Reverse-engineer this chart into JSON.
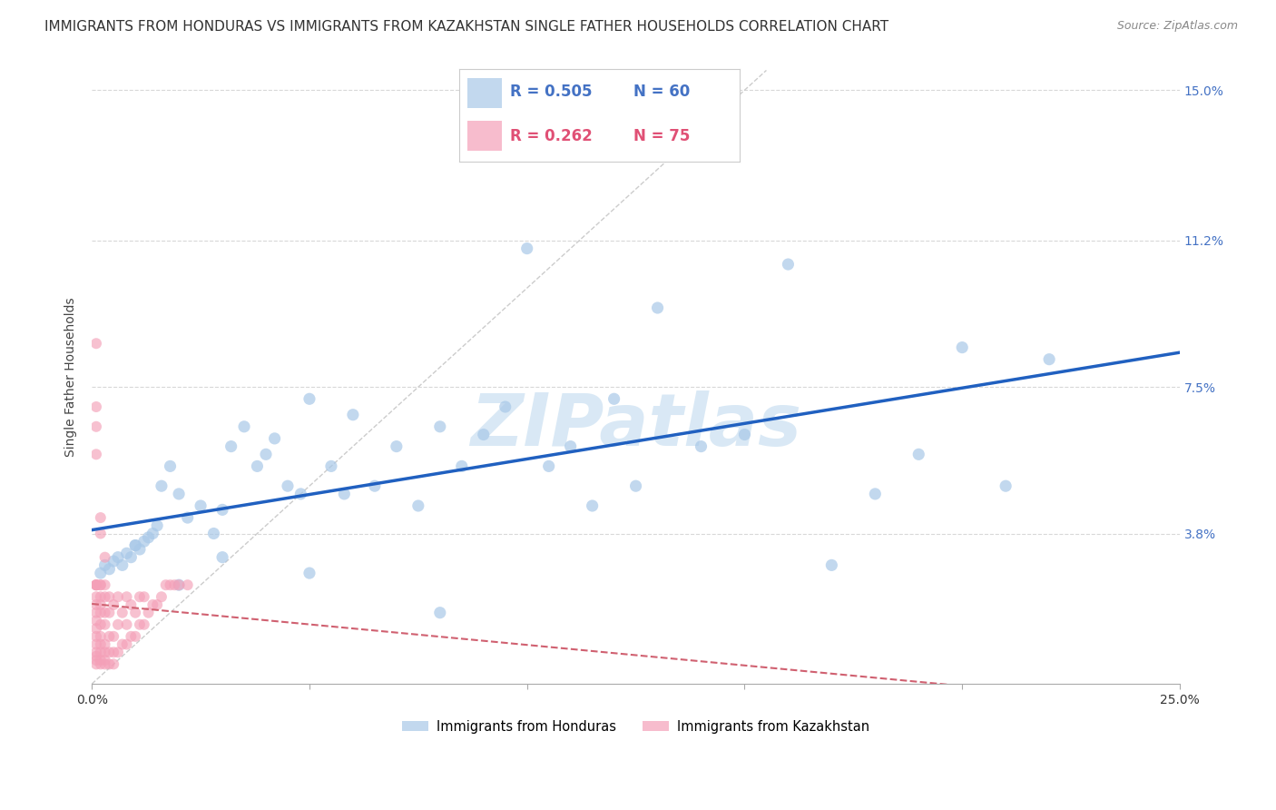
{
  "title": "IMMIGRANTS FROM HONDURAS VS IMMIGRANTS FROM KAZAKHSTAN SINGLE FATHER HOUSEHOLDS CORRELATION CHART",
  "source": "Source: ZipAtlas.com",
  "ylabel": "Single Father Households",
  "blue_label": "Immigrants from Honduras",
  "pink_label": "Immigrants from Kazakhstan",
  "blue_color": "#a8c8e8",
  "pink_color": "#f4a0b8",
  "blue_line_color": "#2060c0",
  "pink_line_color": "#d06070",
  "diagonal_color": "#cccccc",
  "xlim": [
    0.0,
    0.25
  ],
  "ylim": [
    0.0,
    0.155
  ],
  "ytick_values": [
    0.038,
    0.075,
    0.112,
    0.15
  ],
  "ytick_labels": [
    "3.8%",
    "7.5%",
    "11.2%",
    "15.0%"
  ],
  "xtick_values": [
    0.0,
    0.05,
    0.1,
    0.15,
    0.2,
    0.25
  ],
  "xtick_labels": [
    "0.0%",
    "",
    "",
    "",
    "",
    "25.0%"
  ],
  "legend_blue_R": "0.505",
  "legend_blue_N": "60",
  "legend_pink_R": "0.262",
  "legend_pink_N": "75",
  "watermark": "ZIPatlas",
  "background_color": "#ffffff",
  "grid_color": "#d8d8d8",
  "title_fontsize": 11,
  "axis_label_fontsize": 10,
  "tick_fontsize": 10,
  "source_fontsize": 9,
  "blue_x": [
    0.002,
    0.003,
    0.004,
    0.005,
    0.006,
    0.007,
    0.008,
    0.009,
    0.01,
    0.011,
    0.012,
    0.013,
    0.014,
    0.015,
    0.016,
    0.018,
    0.02,
    0.022,
    0.025,
    0.028,
    0.03,
    0.032,
    0.035,
    0.038,
    0.04,
    0.042,
    0.045,
    0.048,
    0.05,
    0.055,
    0.058,
    0.06,
    0.065,
    0.07,
    0.075,
    0.08,
    0.085,
    0.09,
    0.095,
    0.1,
    0.105,
    0.11,
    0.115,
    0.12,
    0.125,
    0.13,
    0.14,
    0.15,
    0.16,
    0.17,
    0.18,
    0.19,
    0.2,
    0.21,
    0.22,
    0.01,
    0.02,
    0.03,
    0.05,
    0.08
  ],
  "blue_y": [
    0.028,
    0.03,
    0.029,
    0.031,
    0.032,
    0.03,
    0.033,
    0.032,
    0.035,
    0.034,
    0.036,
    0.037,
    0.038,
    0.04,
    0.05,
    0.055,
    0.048,
    0.042,
    0.045,
    0.038,
    0.044,
    0.06,
    0.065,
    0.055,
    0.058,
    0.062,
    0.05,
    0.048,
    0.072,
    0.055,
    0.048,
    0.068,
    0.05,
    0.06,
    0.045,
    0.065,
    0.055,
    0.063,
    0.07,
    0.11,
    0.055,
    0.06,
    0.045,
    0.072,
    0.05,
    0.095,
    0.06,
    0.063,
    0.106,
    0.03,
    0.048,
    0.058,
    0.085,
    0.05,
    0.082,
    0.035,
    0.025,
    0.032,
    0.028,
    0.018
  ],
  "pink_x": [
    0.001,
    0.001,
    0.001,
    0.001,
    0.001,
    0.001,
    0.001,
    0.001,
    0.001,
    0.001,
    0.001,
    0.001,
    0.001,
    0.001,
    0.001,
    0.002,
    0.002,
    0.002,
    0.002,
    0.002,
    0.002,
    0.002,
    0.002,
    0.002,
    0.002,
    0.002,
    0.003,
    0.003,
    0.003,
    0.003,
    0.003,
    0.003,
    0.003,
    0.003,
    0.004,
    0.004,
    0.004,
    0.004,
    0.004,
    0.005,
    0.005,
    0.005,
    0.005,
    0.006,
    0.006,
    0.006,
    0.007,
    0.007,
    0.008,
    0.008,
    0.008,
    0.009,
    0.009,
    0.01,
    0.01,
    0.011,
    0.011,
    0.012,
    0.012,
    0.013,
    0.014,
    0.015,
    0.016,
    0.017,
    0.018,
    0.019,
    0.02,
    0.022,
    0.001,
    0.001,
    0.001,
    0.001,
    0.002,
    0.002,
    0.003
  ],
  "pink_y": [
    0.005,
    0.006,
    0.007,
    0.008,
    0.01,
    0.012,
    0.014,
    0.016,
    0.018,
    0.02,
    0.022,
    0.025,
    0.025,
    0.025,
    0.025,
    0.005,
    0.006,
    0.008,
    0.01,
    0.012,
    0.015,
    0.018,
    0.02,
    0.022,
    0.025,
    0.025,
    0.005,
    0.006,
    0.008,
    0.01,
    0.015,
    0.018,
    0.022,
    0.025,
    0.005,
    0.008,
    0.012,
    0.018,
    0.022,
    0.005,
    0.008,
    0.012,
    0.02,
    0.008,
    0.015,
    0.022,
    0.01,
    0.018,
    0.01,
    0.015,
    0.022,
    0.012,
    0.02,
    0.012,
    0.018,
    0.015,
    0.022,
    0.015,
    0.022,
    0.018,
    0.02,
    0.02,
    0.022,
    0.025,
    0.025,
    0.025,
    0.025,
    0.025,
    0.086,
    0.07,
    0.065,
    0.058,
    0.042,
    0.038,
    0.032
  ]
}
